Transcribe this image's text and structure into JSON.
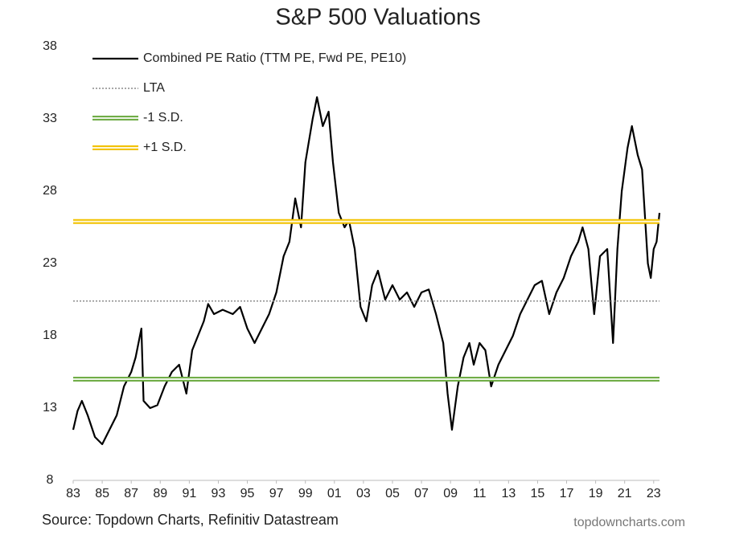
{
  "chart_data": {
    "type": "line",
    "title": "S&P 500 Valuations",
    "source": "Source: Topdown Charts, Refinitiv Datastream",
    "credit": "topdowncharts.com",
    "xlim": [
      1983,
      2023.4
    ],
    "ylim": [
      8,
      38
    ],
    "yticks": [
      8,
      13,
      18,
      23,
      28,
      33,
      38
    ],
    "xticks": [
      {
        "value": 1983,
        "label": "83"
      },
      {
        "value": 1985,
        "label": "85"
      },
      {
        "value": 1987,
        "label": "87"
      },
      {
        "value": 1989,
        "label": "89"
      },
      {
        "value": 1991,
        "label": "91"
      },
      {
        "value": 1993,
        "label": "93"
      },
      {
        "value": 1995,
        "label": "95"
      },
      {
        "value": 1997,
        "label": "97"
      },
      {
        "value": 1999,
        "label": "99"
      },
      {
        "value": 2001,
        "label": "01"
      },
      {
        "value": 2003,
        "label": "03"
      },
      {
        "value": 2005,
        "label": "05"
      },
      {
        "value": 2007,
        "label": "07"
      },
      {
        "value": 2009,
        "label": "09"
      },
      {
        "value": 2011,
        "label": "11"
      },
      {
        "value": 2013,
        "label": "13"
      },
      {
        "value": 2015,
        "label": "15"
      },
      {
        "value": 2017,
        "label": "17"
      },
      {
        "value": 2019,
        "label": "19"
      },
      {
        "value": 2021,
        "label": "21"
      },
      {
        "value": 2023,
        "label": "23"
      }
    ],
    "legend": "upper left",
    "series": [
      {
        "name": "Combined PE Ratio (TTM PE, Fwd PE, PE10)",
        "color": "#000000",
        "style": "solid",
        "x": [
          1983.0,
          1983.3,
          1983.6,
          1984.0,
          1984.5,
          1985.0,
          1985.5,
          1986.0,
          1986.5,
          1987.0,
          1987.3,
          1987.7,
          1987.85,
          1988.3,
          1988.8,
          1989.3,
          1989.8,
          1990.3,
          1990.8,
          1991.2,
          1991.6,
          1992.0,
          1992.3,
          1992.7,
          1993.3,
          1994.0,
          1994.5,
          1995.0,
          1995.5,
          1996.0,
          1996.5,
          1997.0,
          1997.5,
          1997.9,
          1998.3,
          1998.7,
          1999.0,
          1999.5,
          1999.8,
          2000.2,
          2000.6,
          2000.9,
          2001.3,
          2001.7,
          2002.0,
          2002.4,
          2002.8,
          2003.2,
          2003.6,
          2004.0,
          2004.5,
          2005.0,
          2005.5,
          2006.0,
          2006.5,
          2007.0,
          2007.5,
          2008.0,
          2008.5,
          2008.8,
          2009.1,
          2009.5,
          2009.9,
          2010.3,
          2010.6,
          2011.0,
          2011.4,
          2011.8,
          2012.3,
          2012.8,
          2013.3,
          2013.8,
          2014.3,
          2014.8,
          2015.3,
          2015.8,
          2016.3,
          2016.8,
          2017.3,
          2017.8,
          2018.1,
          2018.5,
          2018.9,
          2019.3,
          2019.8,
          2020.2,
          2020.5,
          2020.8,
          2021.2,
          2021.5,
          2021.9,
          2022.2,
          2022.6,
          2022.8,
          2023.0,
          2023.2,
          2023.4
        ],
        "values": [
          11.5,
          12.8,
          13.5,
          12.5,
          11.0,
          10.5,
          11.5,
          12.5,
          14.5,
          15.5,
          16.5,
          18.5,
          13.5,
          13.0,
          13.2,
          14.5,
          15.5,
          16.0,
          14.0,
          17.0,
          18.0,
          19.0,
          20.2,
          19.5,
          19.8,
          19.5,
          20.0,
          18.5,
          17.5,
          18.5,
          19.5,
          21.0,
          23.5,
          24.5,
          27.5,
          25.5,
          30.0,
          33.0,
          34.5,
          32.5,
          33.5,
          30.0,
          26.5,
          25.5,
          26.0,
          24.0,
          20.0,
          19.0,
          21.5,
          22.5,
          20.5,
          21.5,
          20.5,
          21.0,
          20.0,
          21.0,
          21.2,
          19.5,
          17.5,
          14.0,
          11.5,
          14.5,
          16.5,
          17.5,
          16.0,
          17.5,
          17.0,
          14.5,
          16.0,
          17.0,
          18.0,
          19.5,
          20.5,
          21.5,
          21.8,
          19.5,
          21.0,
          22.0,
          23.5,
          24.5,
          25.5,
          24.0,
          19.5,
          23.5,
          24.0,
          17.5,
          24.0,
          28.0,
          31.0,
          32.5,
          30.5,
          29.5,
          23.0,
          22.0,
          24.0,
          24.5,
          26.5
        ]
      },
      {
        "name": "LTA",
        "color": "#8c8c8c",
        "style": "dotted",
        "x": [
          1983,
          2023.4
        ],
        "values": [
          20.4,
          20.4
        ]
      },
      {
        "name": "-1 S.D.",
        "color": "#70ad47",
        "style": "double",
        "x": [
          1983,
          2023.4
        ],
        "values": [
          15.0,
          15.0
        ]
      },
      {
        "name": "+1 S.D.",
        "color": "#f2c200",
        "style": "double",
        "x": [
          1983,
          2023.4
        ],
        "values": [
          25.9,
          25.9
        ]
      }
    ]
  }
}
